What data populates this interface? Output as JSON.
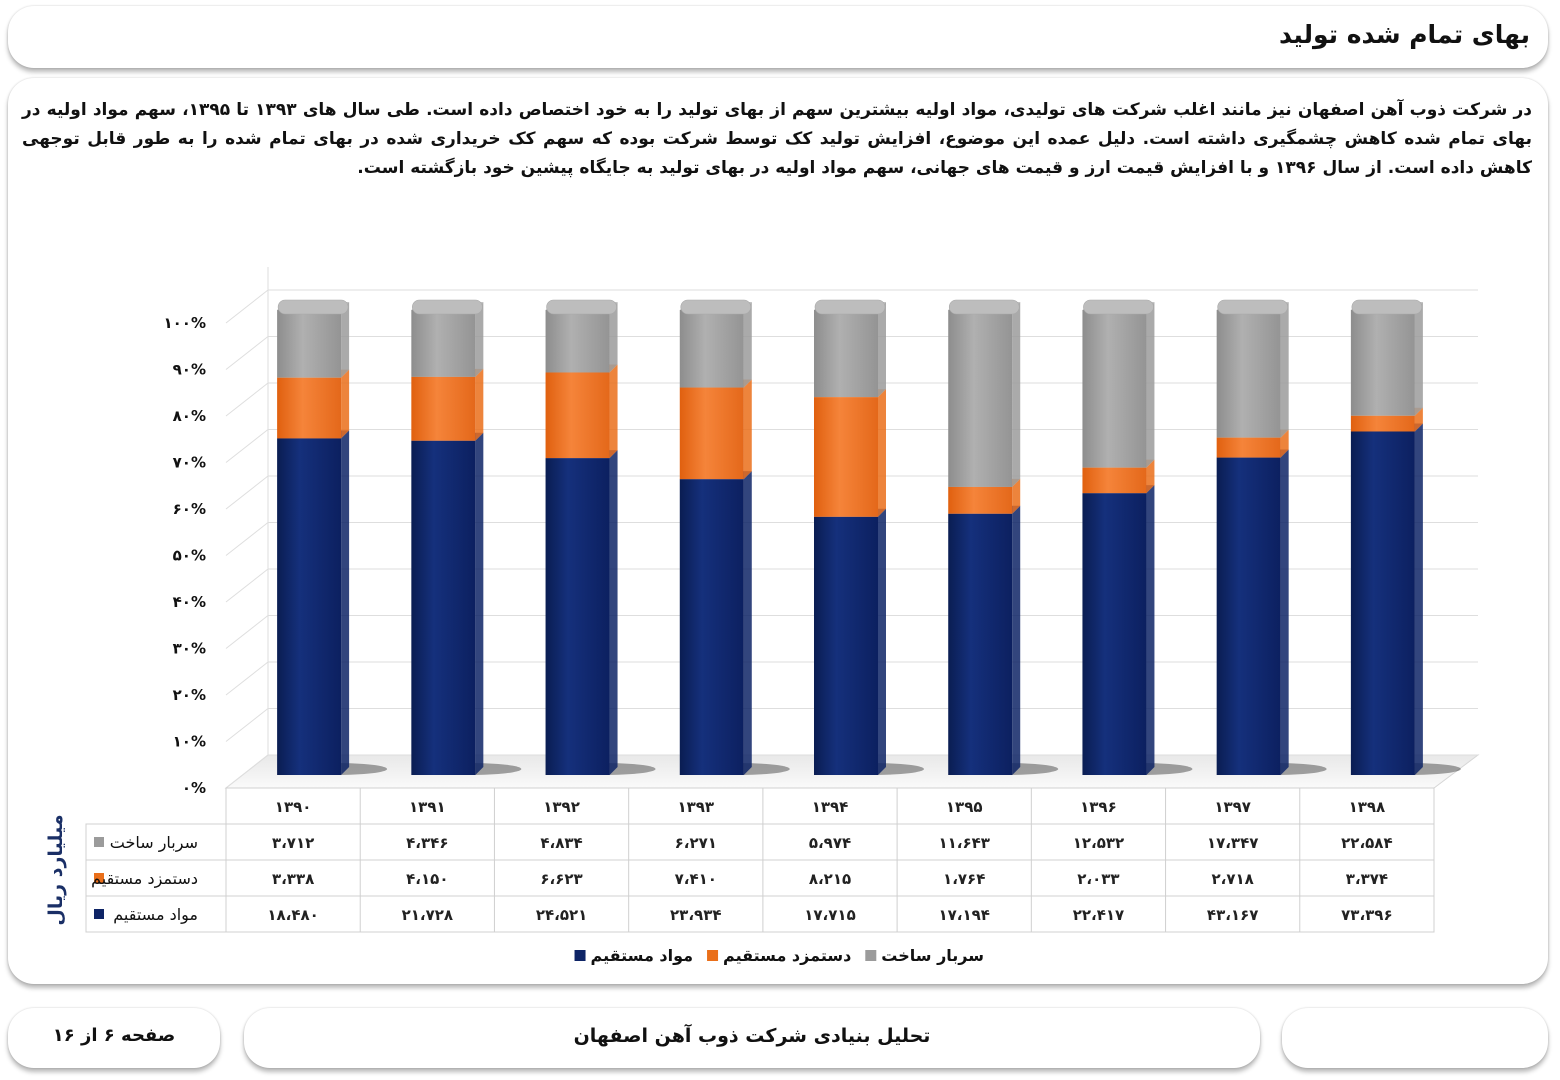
{
  "header": {
    "title": "بهای تمام شده تولید"
  },
  "description": "در شرکت ذوب آهن اصفهان نیز مانند اغلب شرکت های تولیدی، مواد اولیه بیشترین سهم از بهای تولید را به خود اختصاص داده است. طی سال های ۱۳۹۳ تا ۱۳۹۵، سهم مواد اولیه در بهای تمام شده کاهش چشمگیری داشته است. دلیل عمده این موضوع، افزایش تولید کک توسط شرکت بوده که سهم کک خریداری شده در بهای تمام شده را به طور قابل توجهی کاهش داده است. از سال ۱۳۹۶ و با افزایش قیمت ارز و قیمت های جهانی، سهم مواد اولیه در بهای تولید به جایگاه پیشین خود بازگشته است.",
  "chart_data": {
    "type": "bar",
    "stacked": "percent",
    "categories": [
      "۱۳۹۰",
      "۱۳۹۱",
      "۱۳۹۲",
      "۱۳۹۳",
      "۱۳۹۴",
      "۱۳۹۵",
      "۱۳۹۶",
      "۱۳۹۷",
      "۱۳۹۸"
    ],
    "series": [
      {
        "name": "مواد مستقیم",
        "color": "#0e2466",
        "values": [
          18480,
          21728,
          24521,
          23934,
          17715,
          17194,
          22417,
          43167,
          73396
        ],
        "labels": [
          "۱۸،۴۸۰",
          "۲۱،۷۲۸",
          "۲۴،۵۲۱",
          "۲۳،۹۳۴",
          "۱۷،۷۱۵",
          "۱۷،۱۹۴",
          "۲۲،۴۱۷",
          "۴۳،۱۶۷",
          "۷۳،۳۹۶"
        ]
      },
      {
        "name": "دستمزد مستقیم",
        "color": "#ea6f1a",
        "values": [
          3338,
          4150,
          6623,
          7410,
          8215,
          1764,
          2033,
          2718,
          3374
        ],
        "labels": [
          "۳،۳۳۸",
          "۴،۱۵۰",
          "۶،۶۲۳",
          "۷،۴۱۰",
          "۸،۲۱۵",
          "۱،۷۶۴",
          "۲،۰۳۳",
          "۲،۷۱۸",
          "۳،۳۷۴"
        ]
      },
      {
        "name": "سربار ساخت",
        "color": "#9b9b9b",
        "values": [
          3712,
          4346,
          4834,
          6271,
          5974,
          11643,
          12532,
          17347,
          22584
        ],
        "labels": [
          "۳،۷۱۲",
          "۴،۳۴۶",
          "۴،۸۳۴",
          "۶،۲۷۱",
          "۵،۹۷۴",
          "۱۱،۶۴۳",
          "۱۲،۵۳۲",
          "۱۷،۳۴۷",
          "۲۲،۵۸۴"
        ]
      }
    ],
    "y_ticks": [
      "۰%",
      "۱۰%",
      "۲۰%",
      "۳۰%",
      "۴۰%",
      "۵۰%",
      "۶۰%",
      "۷۰%",
      "۸۰%",
      "۹۰%",
      "۱۰۰%"
    ],
    "ylim": [
      0,
      100
    ],
    "unit_label": "میلیارد ریال",
    "table_row_order": [
      2,
      1,
      0
    ],
    "legend_order": [
      2,
      1,
      0
    ],
    "legend_position": "bottom",
    "grid": true
  },
  "footer": {
    "page_number": "صفحه  ۶  از  ۱۶",
    "report_title": "تحلیل بنیادی شرکت ذوب آهن اصفهان"
  }
}
